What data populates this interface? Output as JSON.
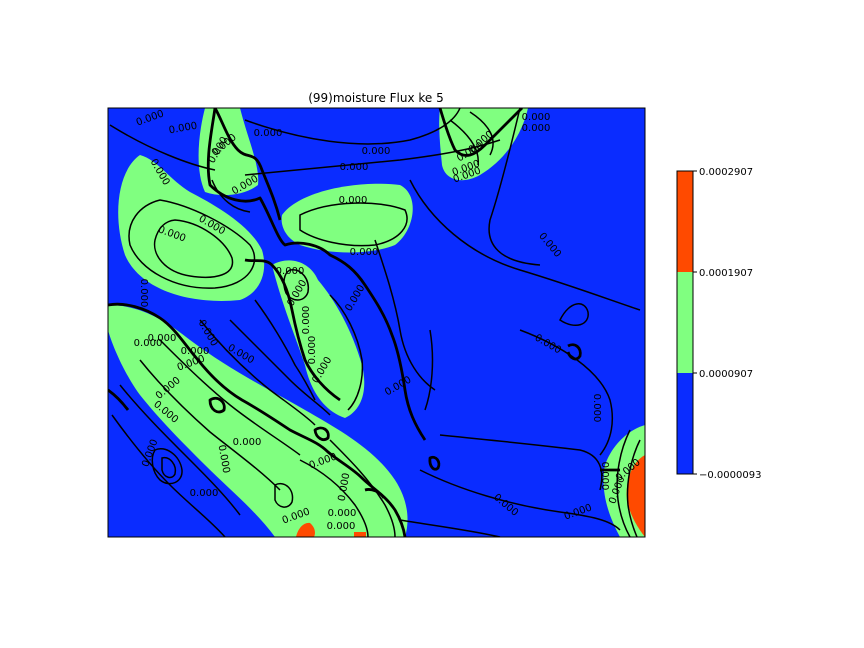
{
  "chart_data": {
    "type": "contourf",
    "title": "(99)moisture Flux ke 5",
    "xlabel": "",
    "ylabel": "",
    "levels": [
      -9.3e-06,
      9.07e-05,
      0.0001907,
      0.0002907
    ],
    "level_labels": [
      "−0.0000093",
      "0.0000907",
      "0.0001907",
      "0.0002907"
    ],
    "colors": [
      "#0a2cff",
      "#80ff80",
      "#ff4a00"
    ],
    "contour_label": "0.000",
    "contour_label_count": 52,
    "grid": false,
    "colorbar": "right"
  }
}
